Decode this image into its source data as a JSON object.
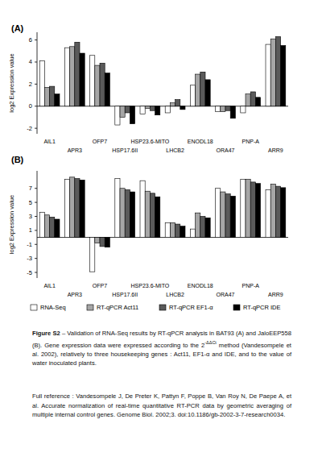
{
  "chart_data": [
    {
      "type": "bar",
      "title": "(A)",
      "y_label": "log2 Expression value",
      "categories": [
        "AIL1",
        "APR3",
        "OFP7",
        "HSP17.6II",
        "HSP23.6-MITO",
        "LHCB2",
        "ENODL18",
        "ORA47",
        "PNP-A",
        "ARR9"
      ],
      "series": [
        {
          "name": "RNA-Seq",
          "color": "#ffffff",
          "values": [
            4.1,
            5.3,
            4.6,
            -1.7,
            -0.7,
            -0.6,
            1.9,
            -0.5,
            -0.6,
            5.6
          ]
        },
        {
          "name": "RT-qPCR Act11",
          "color": "#a6a6a6",
          "values": [
            1.7,
            5.4,
            3.7,
            -1.0,
            -0.2,
            0.3,
            2.9,
            -0.5,
            1.1,
            6.1
          ]
        },
        {
          "name": "RT-qPCR EF1-α",
          "color": "#5a5a5a",
          "values": [
            1.8,
            5.8,
            3.9,
            -0.6,
            -0.4,
            0.6,
            3.1,
            -0.4,
            1.3,
            6.3
          ]
        },
        {
          "name": "RT-qPCR IDE",
          "color": "#000000",
          "values": [
            1.1,
            4.8,
            3.0,
            -1.6,
            -0.8,
            -0.3,
            2.4,
            -1.1,
            0.8,
            5.5
          ]
        }
      ],
      "ylim": [
        -2.5,
        6.7
      ],
      "yticks": [
        -2,
        0,
        2,
        4,
        6
      ],
      "grid": false
    },
    {
      "type": "bar",
      "title": "(B)",
      "y_label": "log2 Expression value",
      "categories": [
        "AIL1",
        "APR3",
        "OFP7",
        "HSP17.6II",
        "HSP23.6-MITO",
        "LHCB2",
        "ENODL18",
        "ORA47",
        "PNP-A",
        "ARR9"
      ],
      "series": [
        {
          "name": "RNA-Seq",
          "color": "#ffffff",
          "values": [
            3.6,
            8.3,
            -4.9,
            8.4,
            8.1,
            2.1,
            1.2,
            7.0,
            8.3,
            6.8
          ]
        },
        {
          "name": "RT-qPCR Act11",
          "color": "#a6a6a6",
          "values": [
            3.2,
            8.6,
            -0.8,
            7.0,
            6.6,
            2.1,
            3.5,
            6.5,
            8.3,
            7.6
          ]
        },
        {
          "name": "RT-qPCR EF1-α",
          "color": "#5a5a5a",
          "values": [
            2.9,
            8.4,
            -1.3,
            6.8,
            6.3,
            1.9,
            3.0,
            6.2,
            7.9,
            7.3
          ]
        },
        {
          "name": "RT-qPCR IDE",
          "color": "#000000",
          "values": [
            2.6,
            8.2,
            -1.4,
            6.5,
            5.8,
            1.6,
            2.8,
            5.9,
            7.7,
            7.1
          ]
        }
      ],
      "ylim": [
        -5.8,
        9.5
      ],
      "yticks": [
        -5,
        -3,
        -1,
        1,
        3,
        5,
        7
      ],
      "grid": false,
      "legend": "bottom"
    }
  ],
  "caption": {
    "label": "Figure S2",
    "text_before": " – Validation of RNA-Seq results by RT-qPCR analysis in BAT93 (A) and JaloEEP558 (B). Gene expression data were expressed according to the 2",
    "superscript": "-ΔΔCt",
    "text_after": " method (Vandesompele et al. 2002), relatively to three housekeeping genes : Act11, EF1-α and IDE, and to the value of water inoculated plants."
  },
  "reference": "Full reference : Vandesompele J, De Preter K, Pattyn F, Poppe B, Van Roy N, De Paepe A, et al. Accurate normalization of real-time quantitative RT-PCR data by geometric averaging of multiple internal control genes. Genome Biol. 2002;3. doi:10.1186/gb-2002-3-7-research0034."
}
